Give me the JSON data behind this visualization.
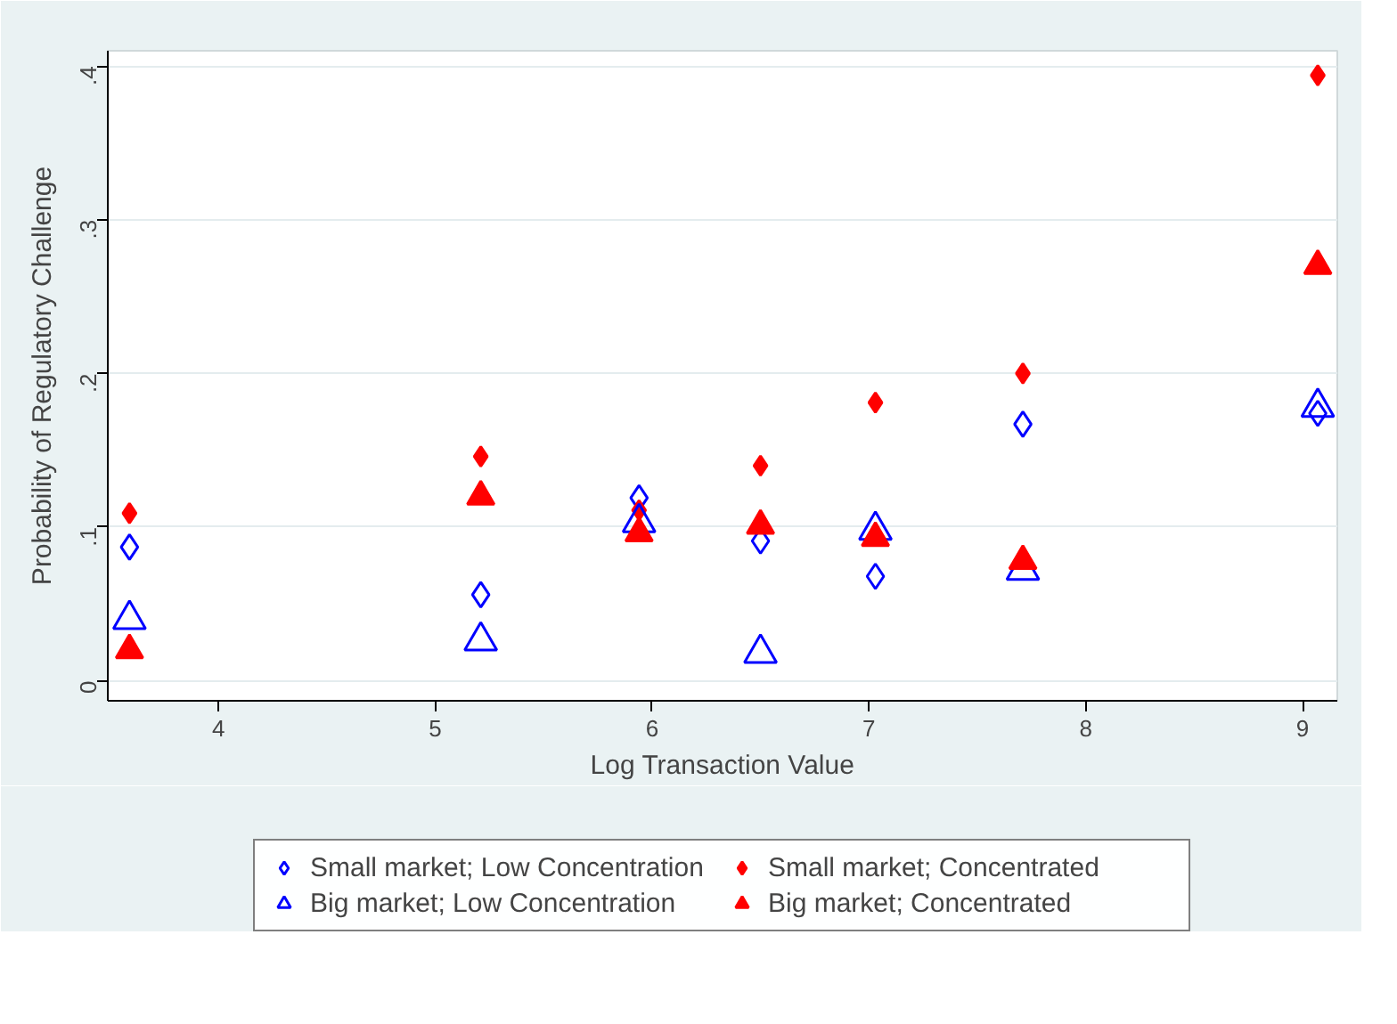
{
  "chart_data": {
    "type": "scatter",
    "xlabel": "Log Transaction Value",
    "ylabel": "Probability of Regulatory Challenge",
    "x": [
      3.59,
      5.21,
      5.94,
      6.5,
      7.03,
      7.71,
      9.07
    ],
    "xlim": [
      3.49,
      9.16
    ],
    "xticks": [
      4,
      5,
      6,
      7,
      8,
      9
    ],
    "ylim": [
      -0.013,
      0.41
    ],
    "yticks": [
      0,
      {
        "value": 0.1,
        "label": ".1"
      },
      {
        "value": 0.2,
        "label": ".2"
      },
      {
        "value": 0.3,
        "label": ".3"
      },
      {
        "value": 0.4,
        "label": ".4"
      }
    ],
    "grid": "y",
    "legend": "bottom",
    "series": [
      {
        "name": "Small market; Low Concentration",
        "color": "#0000ff",
        "marker": "diamond",
        "values": [
          0.087,
          0.056,
          0.119,
          0.091,
          0.068,
          0.167,
          0.174
        ]
      },
      {
        "name": "Small market; Concentrated",
        "color": "#ff0000",
        "marker": "diamond",
        "values": [
          0.109,
          0.146,
          0.111,
          0.14,
          0.181,
          0.2,
          0.394
        ]
      },
      {
        "name": "Big market; Low Concentration",
        "color": "#0000ff",
        "marker": "triangle",
        "values": [
          0.04,
          0.026,
          0.103,
          0.018,
          0.098,
          0.072,
          0.178
        ]
      },
      {
        "name": "Big market; Concentrated",
        "color": "#ff0000",
        "marker": "triangle",
        "values": [
          0.02,
          0.12,
          0.096,
          0.101,
          0.093,
          0.078,
          0.27
        ]
      }
    ]
  }
}
